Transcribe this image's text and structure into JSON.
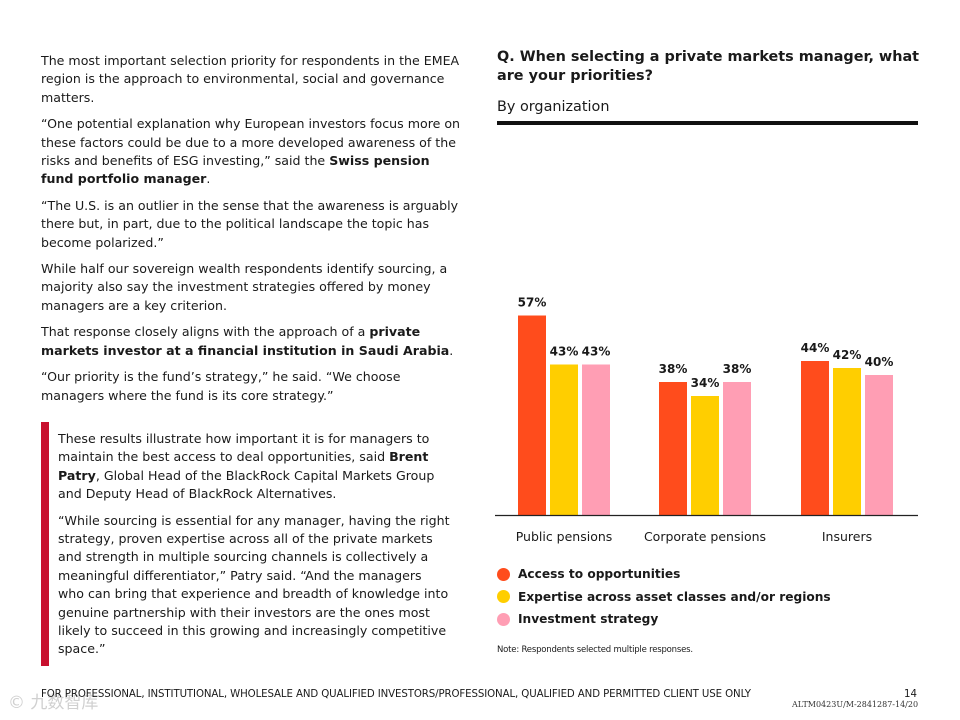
{
  "left_text": {
    "p1": "The most important selection priority for respondents in the EMEA region is the approach to environmental, social and governance matters.",
    "p2_a": "“One potential explanation why European investors focus more on these factors could be due to a more developed awareness of the risks and benefits of ESG investing,” said the ",
    "p2_b": "Swiss pension fund portfolio manager",
    "p2_c": ".",
    "p3": "“The U.S. is an outlier in the sense that the awareness is arguably there but, in part, due to the political landscape the topic has become polarized.”",
    "p4": "While half our sovereign wealth respondents identify sourcing, a majority also say the investment strategies offered by money managers are a key criterion.",
    "p5_a": "That response closely aligns with the approach of a ",
    "p5_b": "private markets investor at a financial institution in Saudi Arabia",
    "p5_c": ".",
    "p6": "“Our priority is the fund’s strategy,” he said. “We choose managers where the fund is its core strategy.”"
  },
  "quote_box": {
    "p1_a": "These results illustrate how important it is for managers to maintain the best access to deal opportunities, said ",
    "p1_b": "Brent Patry",
    "p1_c": ", Global Head of the BlackRock Capital Markets Group and Deputy Head of BlackRock Alternatives.",
    "p2": "“While sourcing is essential for any manager, having the right strategy, proven expertise across all of the private markets and strength in multiple sourcing channels is collectively a meaningful differentiator,” Patry said. “And the managers who can bring that experience and breadth of knowledge into genuine partnership with their investors are the ones most likely to succeed in this growing and increasingly competitive space.”",
    "accent_color": "#c8102e"
  },
  "chart_data": {
    "type": "bar",
    "title": "Q. When selecting a private markets manager, what are your priorities?",
    "subtitle": "By organization",
    "categories": [
      "Public pensions",
      "Corporate pensions",
      "Insurers"
    ],
    "series": [
      {
        "name": "Access to opportunities",
        "color": "#ff4c1c",
        "values": [
          57,
          38,
          44
        ]
      },
      {
        "name": "Expertise across asset classes and/or regions",
        "color": "#ffce00",
        "values": [
          43,
          34,
          42
        ]
      },
      {
        "name": "Investment strategy",
        "color": "#ff9eb4",
        "values": [
          43,
          38,
          40
        ]
      }
    ],
    "value_suffix": "%",
    "ylim": [
      0,
      60
    ],
    "xlabel": "",
    "ylabel": "",
    "grid": false,
    "legend_position": "bottom",
    "note": "Note: Respondents selected multiple responses."
  },
  "footer": {
    "text": "FOR PROFESSIONAL, INSTITUTIONAL, WHOLESALE AND QUALIFIED INVESTORS/PROFESSIONAL, QUALIFIED AND PERMITTED CLIENT USE ONLY",
    "page": "14",
    "code": "ALTM0423U/M-2841287-14/20",
    "watermark": "© 九数智库"
  }
}
